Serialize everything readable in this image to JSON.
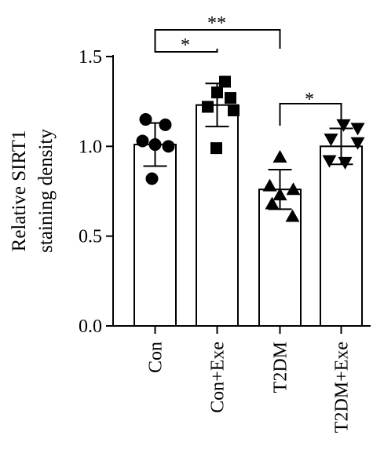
{
  "chart_data": {
    "type": "bar",
    "ylabel": [
      "Relative SIRT1",
      "staining density"
    ],
    "ylim": [
      0,
      1.5
    ],
    "yticks": [
      0.0,
      0.5,
      1.0,
      1.5
    ],
    "ytick_labels": [
      "0.0",
      "0.5",
      "1.0",
      "1.5"
    ],
    "categories": [
      "Con",
      "Con+Exe",
      "T2DM",
      "T2DM+Exe"
    ],
    "values": [
      1.01,
      1.23,
      0.76,
      1.0
    ],
    "errors": [
      0.12,
      0.12,
      0.11,
      0.1
    ],
    "markers": [
      "circle",
      "square",
      "triangle-up",
      "triangle-down"
    ],
    "points": [
      [
        1.15,
        1.12,
        1.03,
        1.01,
        1.0,
        0.82
      ],
      [
        1.36,
        1.3,
        1.27,
        1.22,
        1.2,
        0.99
      ],
      [
        0.94,
        0.78,
        0.76,
        0.73,
        0.68,
        0.61
      ],
      [
        1.12,
        1.1,
        1.04,
        1.02,
        0.92,
        0.91
      ]
    ],
    "significance": [
      {
        "from": 0,
        "to": 1,
        "label": "*"
      },
      {
        "from": 0,
        "to": 2,
        "label": "**"
      },
      {
        "from": 2,
        "to": 3,
        "label": "*"
      }
    ],
    "grid": false,
    "legend": "none"
  }
}
